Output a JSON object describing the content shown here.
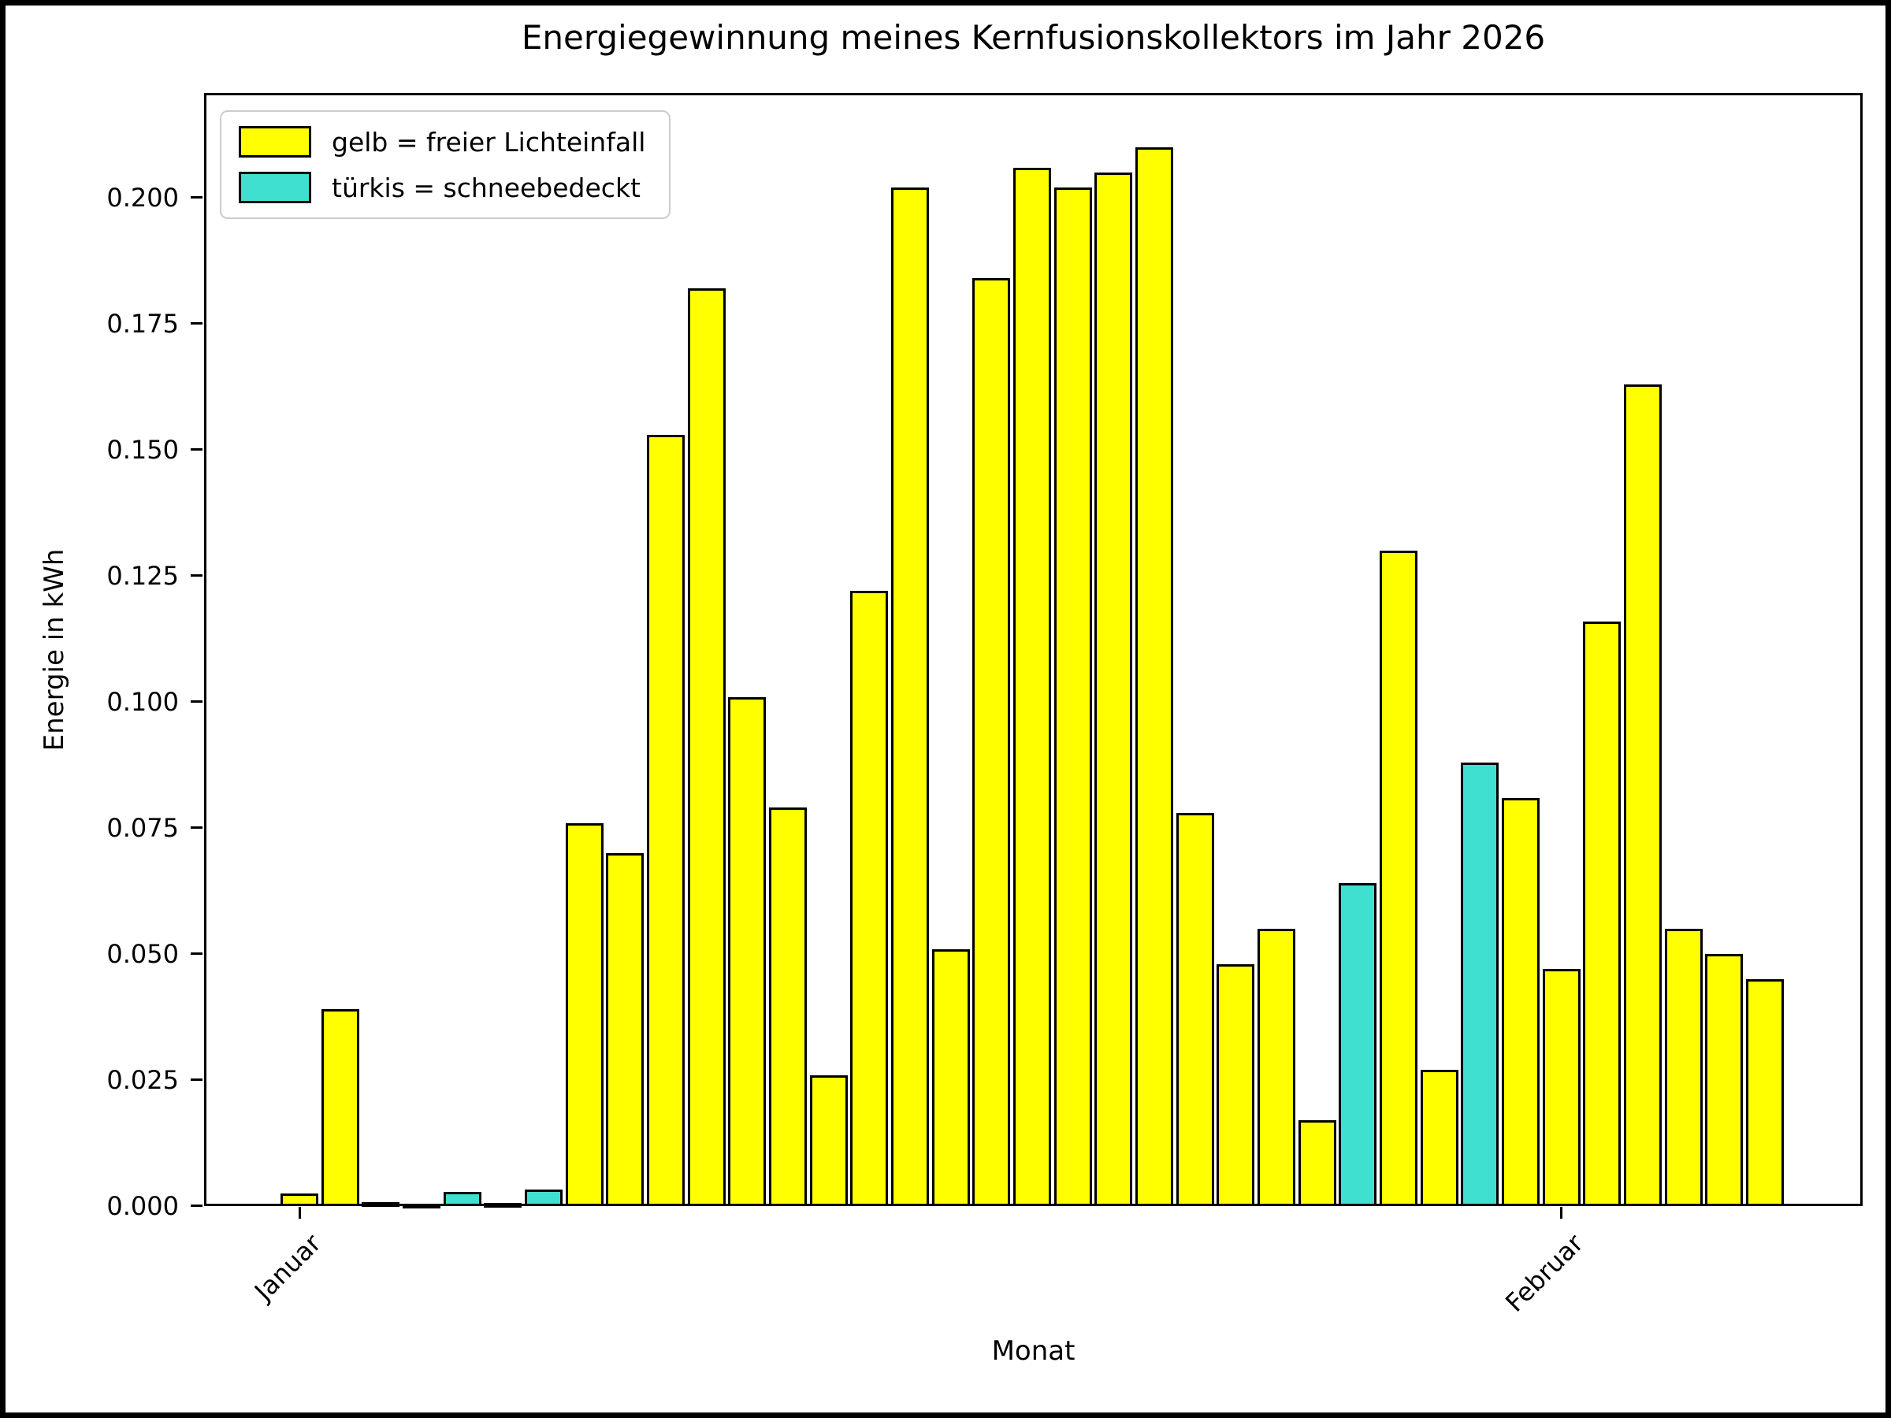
{
  "chart_data": {
    "type": "bar",
    "title": "Energiegewinnung meines Kernfusionskollektors im Jahr 2026",
    "xlabel": "Monat",
    "ylabel": "Energie in kWh",
    "ylim": [
      0,
      0.221
    ],
    "grid": false,
    "legend_position": "upper left",
    "legend": [
      {
        "label": "gelb = freier Lichteinfall",
        "color": "#ffff00"
      },
      {
        "label": "türkis = schneebedeckt",
        "color": "#40e0d0"
      }
    ],
    "colors": {
      "default": "#ffff00",
      "snow": "#40e0d0",
      "edge": "#000000"
    },
    "yticks": [
      "0.000",
      "0.025",
      "0.050",
      "0.075",
      "0.100",
      "0.125",
      "0.150",
      "0.175",
      "0.200"
    ],
    "xticks": [
      {
        "label": "Januar",
        "bar_index": 1
      },
      {
        "label": "Februar",
        "bar_index": 32
      }
    ],
    "n_bars": 37,
    "values": [
      0.0025,
      0.039,
      0.0008,
      0.0004,
      0.0028,
      0.0006,
      0.0033,
      0.076,
      0.07,
      0.153,
      0.182,
      0.101,
      0.079,
      0.026,
      0.122,
      0.202,
      0.051,
      0.184,
      0.206,
      0.202,
      0.205,
      0.21,
      0.078,
      0.048,
      0.055,
      0.017,
      0.064,
      0.13,
      0.027,
      0.088,
      0.081,
      0.047,
      0.116,
      0.163,
      0.055,
      0.05,
      0.045
    ],
    "snow_covered_bars": [
      3,
      5,
      6,
      7,
      27,
      30
    ]
  }
}
